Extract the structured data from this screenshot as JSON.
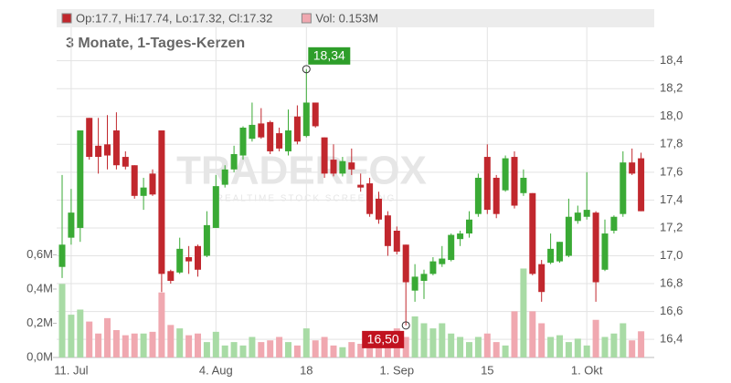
{
  "chart_data": {
    "type": "candlestick",
    "subtitle": "3 Monate, 1-Tages-Kerzen",
    "watermark": [
      "TRADERFOX",
      "REALTIME STOCK SCREENING"
    ],
    "legend": [
      {
        "label": "Op:17.7, Hi:17.74, Lo:17.32, Cl:17.32",
        "color": "#c1272d"
      },
      {
        "label": "Vol: 0.153M",
        "color": "#f0a8b0"
      }
    ],
    "categories": [
      null,
      "11. Jul",
      null,
      null,
      null,
      null,
      null,
      null,
      null,
      null,
      null,
      null,
      null,
      null,
      null,
      null,
      null,
      "4. Aug",
      null,
      null,
      null,
      null,
      null,
      null,
      null,
      null,
      null,
      "18",
      null,
      null,
      null,
      null,
      null,
      null,
      null,
      null,
      null,
      "1. Sep",
      null,
      null,
      null,
      null,
      null,
      null,
      null,
      null,
      null,
      "15",
      null,
      null,
      null,
      null,
      null,
      null,
      null,
      null,
      null,
      null,
      "1. Okt",
      null,
      null,
      null,
      null,
      null,
      null
    ],
    "open": [
      16.92,
      17.13,
      17.2,
      17.99,
      17.79,
      17.8,
      17.9,
      17.71,
      17.65,
      17.43,
      17.59,
      17.9,
      16.89,
      16.88,
      16.99,
      17.07,
      17.0,
      17.2,
      17.51,
      17.62,
      17.72,
      17.84,
      17.95,
      17.96,
      17.88,
      17.75,
      18.0,
      17.86,
      18.1,
      17.85,
      17.69,
      17.59,
      17.67,
      17.51,
      17.52,
      17.41,
      17.29,
      17.18,
      17.08,
      16.75,
      16.82,
      16.87,
      16.94,
      16.97,
      17.12,
      17.16,
      17.3,
      17.71,
      17.56,
      17.47,
      17.71,
      17.45,
      17.45,
      16.94,
      16.95,
      16.96,
      17.0,
      17.25,
      17.28,
      17.31,
      16.9,
      17.18,
      17.3,
      17.67,
      17.7
    ],
    "high": [
      17.58,
      17.48,
      17.9,
      17.99,
      17.99,
      18.01,
      18.03,
      17.75,
      17.65,
      17.56,
      17.62,
      17.9,
      16.9,
      17.13,
      17.07,
      17.08,
      17.32,
      17.58,
      17.65,
      17.79,
      17.93,
      18.1,
      18.06,
      17.97,
      17.92,
      18.05,
      18.08,
      18.34,
      18.1,
      17.85,
      17.8,
      17.71,
      17.77,
      17.59,
      17.56,
      17.46,
      17.32,
      17.21,
      17.08,
      16.94,
      16.9,
      16.99,
      17.07,
      17.16,
      17.18,
      17.32,
      17.59,
      17.8,
      17.58,
      17.72,
      17.75,
      17.62,
      17.45,
      16.97,
      17.16,
      17.1,
      17.41,
      17.36,
      17.6,
      17.32,
      17.26,
      17.29,
      17.75,
      17.77,
      17.74
    ],
    "low": [
      16.84,
      17.08,
      17.1,
      17.69,
      17.59,
      17.62,
      17.62,
      17.62,
      17.41,
      17.33,
      17.43,
      16.74,
      16.8,
      16.87,
      16.87,
      16.85,
      16.99,
      17.2,
      17.49,
      17.6,
      17.69,
      17.82,
      17.84,
      17.73,
      17.75,
      17.72,
      17.8,
      17.85,
      17.92,
      17.56,
      17.57,
      17.57,
      17.58,
      17.46,
      17.28,
      17.23,
      17.0,
      17.01,
      16.5,
      16.67,
      16.69,
      16.86,
      16.92,
      16.96,
      17.07,
      17.13,
      17.28,
      17.3,
      17.27,
      17.46,
      17.34,
      17.43,
      16.86,
      16.67,
      16.94,
      16.95,
      16.99,
      17.23,
      17.26,
      16.67,
      16.89,
      17.16,
      17.28,
      17.58,
      17.32
    ],
    "close": [
      17.08,
      17.31,
      17.9,
      17.71,
      17.71,
      17.72,
      17.65,
      17.64,
      17.43,
      17.49,
      17.44,
      16.87,
      16.82,
      17.05,
      16.96,
      16.9,
      17.22,
      17.5,
      17.62,
      17.73,
      17.92,
      17.94,
      17.85,
      17.75,
      17.77,
      17.9,
      17.82,
      18.1,
      17.93,
      17.59,
      17.59,
      17.68,
      17.62,
      17.49,
      17.3,
      17.26,
      17.07,
      17.03,
      16.81,
      16.85,
      16.87,
      16.96,
      16.98,
      17.15,
      17.16,
      17.26,
      17.56,
      17.33,
      17.3,
      17.7,
      17.36,
      17.56,
      16.87,
      16.74,
      17.05,
      17.1,
      17.28,
      17.31,
      17.33,
      16.81,
      17.16,
      17.28,
      17.67,
      17.59,
      17.32
    ],
    "volume": [
      0.43,
      0.25,
      0.28,
      0.21,
      0.14,
      0.23,
      0.16,
      0.13,
      0.14,
      0.14,
      0.15,
      0.38,
      0.19,
      0.17,
      0.13,
      0.14,
      0.09,
      0.15,
      0.07,
      0.09,
      0.07,
      0.12,
      0.09,
      0.1,
      0.12,
      0.09,
      0.07,
      0.17,
      0.1,
      0.12,
      0.07,
      0.06,
      0.09,
      0.08,
      0.09,
      0.14,
      0.13,
      0.17,
      0.12,
      0.24,
      0.2,
      0.17,
      0.2,
      0.14,
      0.12,
      0.09,
      0.12,
      0.14,
      0.09,
      0.07,
      0.27,
      0.52,
      0.27,
      0.2,
      0.12,
      0.13,
      0.09,
      0.11,
      0.07,
      0.22,
      0.12,
      0.14,
      0.2,
      0.1,
      0.153
    ],
    "up_color": "#3aaa35",
    "down_color": "#c1272d",
    "volume_up_color": "#a8dba5",
    "volume_down_color": "#f0a8b0",
    "ylim": [
      16.27,
      18.64
    ],
    "yticks": [
      {
        "value": 16.4,
        "label": "16,4"
      },
      {
        "value": 16.6,
        "label": "16,6"
      },
      {
        "value": 16.8,
        "label": "16,8"
      },
      {
        "value": 17.0,
        "label": "17,0"
      },
      {
        "value": 17.2,
        "label": "17,2"
      },
      {
        "value": 17.4,
        "label": "17,4"
      },
      {
        "value": 17.6,
        "label": "17,6"
      },
      {
        "value": 17.8,
        "label": "17,8"
      },
      {
        "value": 18.0,
        "label": "18,0"
      },
      {
        "value": 18.2,
        "label": "18,2"
      },
      {
        "value": 18.4,
        "label": "18,4"
      }
    ],
    "y2lim": [
      0,
      1.93
    ],
    "y2ticks": [
      {
        "value": 0,
        "label": "0,0M"
      },
      {
        "value": 0.2,
        "label": "0,2M"
      },
      {
        "value": 0.4,
        "label": "0,4M"
      },
      {
        "value": 0.6,
        "label": "0,6M"
      }
    ],
    "annotations": [
      {
        "label": "18,34",
        "value": 18.34,
        "color": "#2e9e2a"
      },
      {
        "label": "16,50",
        "value": 16.5,
        "color": "#c1121f"
      }
    ],
    "grid": true
  }
}
